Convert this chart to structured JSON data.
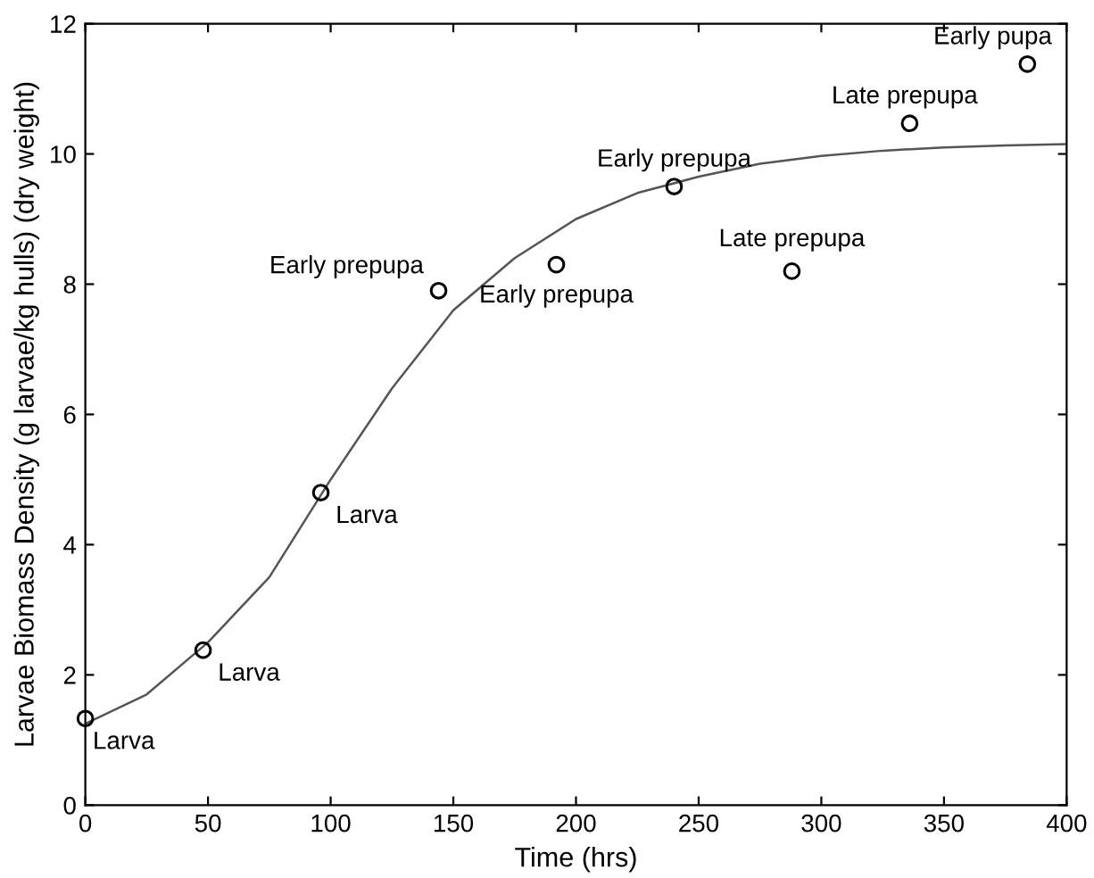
{
  "chart_data": {
    "type": "scatter",
    "xlabel": "Time (hrs)",
    "ylabel": "Larvae Biomass Density (g larvae/kg hulls) (dry weight)",
    "xlim": [
      0,
      400
    ],
    "ylim": [
      0,
      12
    ],
    "xticks": [
      0,
      50,
      100,
      150,
      200,
      250,
      300,
      350,
      400
    ],
    "yticks": [
      0,
      2,
      4,
      6,
      8,
      10,
      12
    ],
    "grid": false,
    "legend": false,
    "series": [
      {
        "color": "#000000",
        "marker": "circle",
        "x": [
          0,
          48,
          96,
          144,
          192,
          240,
          288,
          336,
          384
        ],
        "values": [
          1.33,
          2.38,
          4.8,
          7.9,
          8.3,
          9.5,
          8.2,
          10.47,
          11.38
        ]
      },
      {
        "type": "line",
        "color": "#555555",
        "marker": "none",
        "line_style": "solid",
        "x": [
          0,
          25,
          50,
          75,
          100,
          125,
          150,
          175,
          200,
          225,
          250,
          275,
          300,
          325,
          350,
          375,
          400
        ],
        "values": [
          1.25,
          1.7,
          2.5,
          3.5,
          5.0,
          6.4,
          7.6,
          8.4,
          9.0,
          9.4,
          9.65,
          9.85,
          9.97,
          10.05,
          10.1,
          10.13,
          10.15
        ]
      }
    ],
    "annotations": [
      {
        "text": "Larva",
        "x": 0,
        "y": 1.33
      },
      {
        "text": "Larva",
        "x": 48,
        "y": 2.38
      },
      {
        "text": "Larva",
        "x": 96,
        "y": 4.8
      },
      {
        "text": "Early prepupa",
        "x": 144,
        "y": 7.9
      },
      {
        "text": "Early prepupa",
        "x": 192,
        "y": 8.3
      },
      {
        "text": "Early prepupa",
        "x": 240,
        "y": 9.5
      },
      {
        "text": "Late prepupa",
        "x": 288,
        "y": 8.2
      },
      {
        "text": "Late prepupa",
        "x": 336,
        "y": 10.47
      },
      {
        "text": "Early pupa",
        "x": 384,
        "y": 11.38
      }
    ]
  }
}
